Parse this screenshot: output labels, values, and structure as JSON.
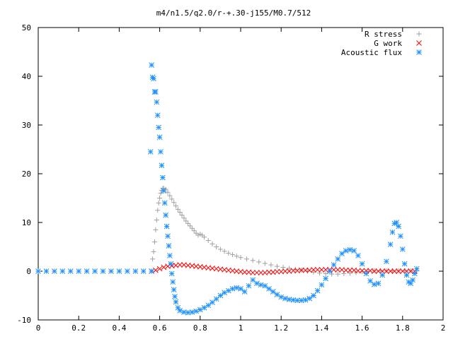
{
  "chart_data": {
    "type": "scatter",
    "title": "m4/n1.5/q2.0/r-+.30-j155/M0.7/512",
    "xlabel": "",
    "ylabel": "",
    "xlim": [
      0,
      2
    ],
    "ylim": [
      -10,
      50
    ],
    "xticks": [
      "0",
      "0.2",
      "0.4",
      "0.6",
      "0.8",
      "1",
      "1.2",
      "1.4",
      "1.6",
      "1.8",
      "2"
    ],
    "yticks": [
      "-10",
      "0",
      "10",
      "20",
      "30",
      "40",
      "50"
    ],
    "grid": false,
    "legend_position": "top-right",
    "series": [
      {
        "name": "R stress",
        "marker": "plus",
        "color": "#a0a0a0",
        "points": [
          [
            0.56,
            0
          ],
          [
            0.565,
            2.5
          ],
          [
            0.57,
            4
          ],
          [
            0.575,
            6
          ],
          [
            0.58,
            8.5
          ],
          [
            0.585,
            10.5
          ],
          [
            0.59,
            12.5
          ],
          [
            0.595,
            14
          ],
          [
            0.6,
            15
          ],
          [
            0.605,
            16
          ],
          [
            0.61,
            16.6
          ],
          [
            0.615,
            17
          ],
          [
            0.62,
            17
          ],
          [
            0.63,
            16.8
          ],
          [
            0.64,
            16.2
          ],
          [
            0.65,
            15.5
          ],
          [
            0.66,
            14.8
          ],
          [
            0.67,
            14.1
          ],
          [
            0.68,
            13.4
          ],
          [
            0.69,
            12.7
          ],
          [
            0.7,
            12.1
          ],
          [
            0.71,
            11.5
          ],
          [
            0.72,
            10.9
          ],
          [
            0.73,
            10.3
          ],
          [
            0.74,
            9.8
          ],
          [
            0.75,
            9.3
          ],
          [
            0.76,
            8.8
          ],
          [
            0.77,
            8.3
          ],
          [
            0.78,
            7.8
          ],
          [
            0.79,
            7.4
          ],
          [
            0.8,
            7.6
          ],
          [
            0.81,
            7.4
          ],
          [
            0.82,
            7
          ],
          [
            0.84,
            6.3
          ],
          [
            0.86,
            5.6
          ],
          [
            0.88,
            5
          ],
          [
            0.9,
            4.5
          ],
          [
            0.92,
            4.1
          ],
          [
            0.94,
            3.7
          ],
          [
            0.96,
            3.4
          ],
          [
            0.98,
            3.1
          ],
          [
            1.0,
            2.8
          ],
          [
            1.03,
            2.5
          ],
          [
            1.06,
            2.2
          ],
          [
            1.09,
            1.9
          ],
          [
            1.12,
            1.6
          ],
          [
            1.15,
            1.3
          ],
          [
            1.18,
            1
          ],
          [
            1.21,
            0.8
          ],
          [
            1.24,
            0.6
          ],
          [
            1.27,
            0.4
          ],
          [
            1.3,
            0.2
          ],
          [
            1.33,
            0
          ],
          [
            1.36,
            -0.2
          ],
          [
            1.39,
            -0.4
          ],
          [
            1.42,
            -0.5
          ],
          [
            1.45,
            -0.6
          ],
          [
            1.48,
            -0.6
          ],
          [
            1.51,
            -0.5
          ],
          [
            1.54,
            -0.4
          ],
          [
            1.57,
            -0.3
          ],
          [
            1.6,
            -0.1
          ],
          [
            1.63,
            0
          ],
          [
            1.66,
            0.1
          ],
          [
            1.69,
            0.1
          ],
          [
            1.72,
            0.1
          ],
          [
            1.75,
            0.1
          ],
          [
            1.78,
            0.1
          ],
          [
            1.81,
            0.1
          ],
          [
            1.84,
            0.1
          ],
          [
            1.87,
            0.1
          ]
        ]
      },
      {
        "name": "G work",
        "marker": "cross",
        "color": "#ff0000",
        "points": [
          [
            0.56,
            0
          ],
          [
            0.58,
            0.2
          ],
          [
            0.6,
            0.5
          ],
          [
            0.62,
            0.8
          ],
          [
            0.64,
            1.0
          ],
          [
            0.66,
            1.1
          ],
          [
            0.68,
            1.2
          ],
          [
            0.7,
            1.3
          ],
          [
            0.72,
            1.3
          ],
          [
            0.74,
            1.2
          ],
          [
            0.76,
            1.1
          ],
          [
            0.78,
            1.0
          ],
          [
            0.8,
            0.9
          ],
          [
            0.82,
            0.8
          ],
          [
            0.84,
            0.7
          ],
          [
            0.86,
            0.6
          ],
          [
            0.88,
            0.5
          ],
          [
            0.9,
            0.4
          ],
          [
            0.92,
            0.3
          ],
          [
            0.94,
            0.2
          ],
          [
            0.96,
            0.1
          ],
          [
            0.98,
            0
          ],
          [
            1.0,
            -0.1
          ],
          [
            1.02,
            -0.2
          ],
          [
            1.04,
            -0.2
          ],
          [
            1.06,
            -0.3
          ],
          [
            1.08,
            -0.3
          ],
          [
            1.1,
            -0.3
          ],
          [
            1.12,
            -0.3
          ],
          [
            1.14,
            -0.2
          ],
          [
            1.16,
            -0.2
          ],
          [
            1.18,
            -0.1
          ],
          [
            1.2,
            -0.1
          ],
          [
            1.22,
            0
          ],
          [
            1.24,
            0
          ],
          [
            1.26,
            0.1
          ],
          [
            1.28,
            0.1
          ],
          [
            1.3,
            0.2
          ],
          [
            1.32,
            0.2
          ],
          [
            1.34,
            0.2
          ],
          [
            1.36,
            0.3
          ],
          [
            1.38,
            0.3
          ],
          [
            1.4,
            0.3
          ],
          [
            1.42,
            0.3
          ],
          [
            1.44,
            0.3
          ],
          [
            1.46,
            0.3
          ],
          [
            1.48,
            0.3
          ],
          [
            1.5,
            0.3
          ],
          [
            1.52,
            0.2
          ],
          [
            1.54,
            0.2
          ],
          [
            1.56,
            0.2
          ],
          [
            1.58,
            0.1
          ],
          [
            1.6,
            0.1
          ],
          [
            1.62,
            0.1
          ],
          [
            1.64,
            0.1
          ],
          [
            1.66,
            0
          ],
          [
            1.68,
            0
          ],
          [
            1.7,
            0
          ],
          [
            1.72,
            0
          ],
          [
            1.74,
            0
          ],
          [
            1.76,
            0
          ],
          [
            1.78,
            0
          ],
          [
            1.8,
            0
          ],
          [
            1.82,
            0
          ],
          [
            1.84,
            0
          ],
          [
            1.86,
            0
          ]
        ]
      },
      {
        "name": "Acoustic flux",
        "marker": "star",
        "color": "#1e90ff",
        "points": [
          [
            0.0,
            0
          ],
          [
            0.04,
            0
          ],
          [
            0.08,
            0
          ],
          [
            0.12,
            0
          ],
          [
            0.16,
            0
          ],
          [
            0.2,
            0
          ],
          [
            0.24,
            0
          ],
          [
            0.28,
            0
          ],
          [
            0.32,
            0
          ],
          [
            0.36,
            0
          ],
          [
            0.4,
            0
          ],
          [
            0.44,
            0
          ],
          [
            0.48,
            0
          ],
          [
            0.52,
            0
          ],
          [
            0.56,
            0
          ],
          [
            0.555,
            24.5
          ],
          [
            0.56,
            42.3
          ],
          [
            0.565,
            39.8
          ],
          [
            0.57,
            39.5
          ],
          [
            0.575,
            36.8
          ],
          [
            0.58,
            36.8
          ],
          [
            0.585,
            34.7
          ],
          [
            0.59,
            32
          ],
          [
            0.595,
            29.5
          ],
          [
            0.6,
            27.5
          ],
          [
            0.605,
            24.5
          ],
          [
            0.61,
            21.7
          ],
          [
            0.615,
            19.2
          ],
          [
            0.62,
            16.5
          ],
          [
            0.625,
            14
          ],
          [
            0.63,
            11.5
          ],
          [
            0.635,
            9.2
          ],
          [
            0.64,
            7.2
          ],
          [
            0.645,
            5.2
          ],
          [
            0.65,
            3.2
          ],
          [
            0.655,
            1.5
          ],
          [
            0.66,
            -0.5
          ],
          [
            0.665,
            -2.2
          ],
          [
            0.67,
            -3.8
          ],
          [
            0.675,
            -5.2
          ],
          [
            0.68,
            -6.3
          ],
          [
            0.69,
            -7.5
          ],
          [
            0.7,
            -8.1
          ],
          [
            0.72,
            -8.4
          ],
          [
            0.74,
            -8.5
          ],
          [
            0.76,
            -8.4
          ],
          [
            0.78,
            -8.2
          ],
          [
            0.8,
            -7.9
          ],
          [
            0.82,
            -7.5
          ],
          [
            0.84,
            -7
          ],
          [
            0.86,
            -6.4
          ],
          [
            0.88,
            -5.7
          ],
          [
            0.9,
            -5
          ],
          [
            0.92,
            -4.4
          ],
          [
            0.94,
            -4
          ],
          [
            0.96,
            -3.6
          ],
          [
            0.98,
            -3.4
          ],
          [
            1.0,
            -3.6
          ],
          [
            1.02,
            -4.2
          ],
          [
            1.04,
            -3
          ],
          [
            1.06,
            -1.8
          ],
          [
            1.08,
            -2.5
          ],
          [
            1.1,
            -2.8
          ],
          [
            1.12,
            -3
          ],
          [
            1.14,
            -3.6
          ],
          [
            1.16,
            -4.2
          ],
          [
            1.18,
            -4.8
          ],
          [
            1.2,
            -5.3
          ],
          [
            1.22,
            -5.6
          ],
          [
            1.24,
            -5.8
          ],
          [
            1.26,
            -5.9
          ],
          [
            1.28,
            -6
          ],
          [
            1.3,
            -6
          ],
          [
            1.32,
            -5.9
          ],
          [
            1.34,
            -5.6
          ],
          [
            1.36,
            -5
          ],
          [
            1.38,
            -4
          ],
          [
            1.4,
            -2.8
          ],
          [
            1.42,
            -1.5
          ],
          [
            1.44,
            0
          ],
          [
            1.46,
            1.3
          ],
          [
            1.48,
            2.5
          ],
          [
            1.5,
            3.6
          ],
          [
            1.52,
            4.2
          ],
          [
            1.54,
            4.4
          ],
          [
            1.56,
            4.2
          ],
          [
            1.58,
            3.2
          ],
          [
            1.6,
            1.5
          ],
          [
            1.62,
            -0.5
          ],
          [
            1.64,
            -2
          ],
          [
            1.66,
            -2.7
          ],
          [
            1.68,
            -2.5
          ],
          [
            1.7,
            -0.8
          ],
          [
            1.72,
            2
          ],
          [
            1.74,
            5.5
          ],
          [
            1.75,
            8
          ],
          [
            1.76,
            9.8
          ],
          [
            1.77,
            10
          ],
          [
            1.78,
            9.2
          ],
          [
            1.79,
            7.2
          ],
          [
            1.8,
            4.5
          ],
          [
            1.81,
            1.5
          ],
          [
            1.82,
            -0.8
          ],
          [
            1.83,
            -2.2
          ],
          [
            1.84,
            -2.5
          ],
          [
            1.85,
            -1.8
          ],
          [
            1.86,
            -0.5
          ],
          [
            1.87,
            0.5
          ]
        ]
      }
    ]
  }
}
